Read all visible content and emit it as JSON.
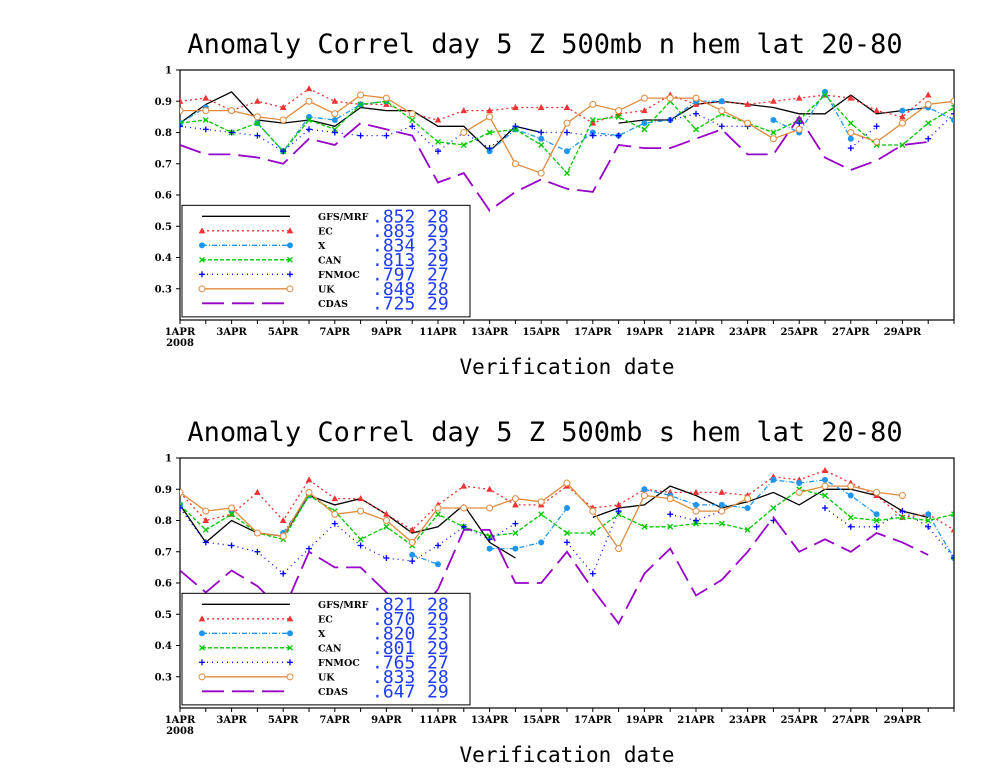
{
  "chart_data": [
    {
      "type": "line",
      "title": "Anomaly Correl  day 5  Z 500mb  n hem  lat 20-80",
      "xlabel": "Verification date",
      "ylim": [
        0.2,
        1.0
      ],
      "yticks": [
        "1",
        "0.9",
        "0.8",
        "0.7",
        "0.6",
        "0.5",
        "0.4",
        "0.3"
      ],
      "yticks_values": [
        1.0,
        0.9,
        0.8,
        0.7,
        0.6,
        0.5,
        0.4,
        0.3
      ],
      "xlim": [
        1,
        31
      ],
      "x_ticks": [
        "1APR",
        "3APR",
        "5APR",
        "7APR",
        "9APR",
        "11APR",
        "13APR",
        "15APR",
        "17APR",
        "19APR",
        "21APR",
        "23APR",
        "25APR",
        "27APR",
        "29APR"
      ],
      "x_ticks_days": [
        1,
        3,
        5,
        7,
        9,
        11,
        13,
        15,
        17,
        19,
        21,
        23,
        25,
        27,
        29
      ],
      "year_label": "2008",
      "series": [
        {
          "name": "GFS/MRF",
          "mean": ".852",
          "count": "28",
          "color": "#000000",
          "dash": "",
          "marker": "none",
          "values": [
            0.83,
            0.89,
            0.93,
            0.84,
            0.83,
            0.84,
            0.82,
            0.88,
            0.87,
            0.87,
            0.82,
            0.82,
            0.74,
            0.82,
            0.8,
            null,
            null,
            0.83,
            0.84,
            0.84,
            0.89,
            0.9,
            0.89,
            0.88,
            0.86,
            0.86,
            0.92,
            0.86,
            0.87,
            0.88,
            null
          ]
        },
        {
          "name": "EC",
          "mean": ".883",
          "count": "29",
          "color": "#f03232",
          "dash": "2,3",
          "marker": "triangle",
          "values": [
            0.9,
            0.91,
            0.87,
            0.9,
            0.88,
            0.94,
            0.9,
            0.89,
            0.89,
            0.86,
            0.84,
            0.87,
            0.87,
            0.88,
            0.88,
            0.88,
            0.83,
            0.86,
            0.87,
            0.92,
            0.89,
            0.9,
            0.89,
            0.9,
            0.91,
            0.92,
            0.91,
            0.87,
            0.85,
            0.92,
            null
          ]
        },
        {
          "name": "X",
          "mean": ".834",
          "count": "23",
          "color": "#1e96f0",
          "dash": "5,2,1,2",
          "marker": "circle",
          "values": [
            0.83,
            0.88,
            null,
            0.83,
            0.74,
            0.85,
            0.84,
            0.89,
            0.9,
            null,
            null,
            null,
            0.74,
            0.81,
            0.78,
            0.74,
            0.8,
            0.79,
            0.83,
            0.84,
            0.9,
            0.9,
            null,
            0.84,
            0.8,
            0.93,
            0.78,
            null,
            0.87,
            0.88,
            0.84
          ]
        },
        {
          "name": "CAN",
          "mean": ".813",
          "count": "29",
          "color": "#00c800",
          "dash": "4,2",
          "marker": "x",
          "values": [
            0.83,
            0.84,
            0.8,
            0.83,
            0.74,
            0.84,
            0.81,
            0.89,
            0.9,
            0.84,
            0.77,
            0.76,
            0.8,
            0.81,
            0.76,
            0.67,
            0.84,
            0.85,
            0.81,
            0.9,
            0.81,
            0.86,
            0.83,
            0.8,
            0.84,
            0.92,
            0.83,
            0.76,
            0.76,
            0.83,
            0.88
          ]
        },
        {
          "name": "FNMOC",
          "mean": ".797",
          "count": "27",
          "color": "#0000ff",
          "dash": "1,4",
          "marker": "plus",
          "values": [
            0.82,
            0.81,
            0.8,
            0.79,
            0.74,
            0.81,
            0.8,
            0.79,
            0.79,
            0.82,
            0.74,
            0.8,
            0.75,
            0.82,
            0.8,
            0.8,
            0.79,
            0.79,
            null,
            0.84,
            0.86,
            0.82,
            0.82,
            null,
            0.83,
            null,
            0.75,
            0.82,
            null,
            0.78,
            0.86
          ]
        },
        {
          "name": "UK",
          "mean": ".848",
          "count": "28",
          "color": "#e08a3c",
          "dash": "",
          "marker": "ocircle",
          "values": [
            0.87,
            0.87,
            0.87,
            0.85,
            0.84,
            0.9,
            0.86,
            0.92,
            0.91,
            0.86,
            null,
            0.8,
            0.85,
            0.7,
            0.67,
            0.83,
            0.89,
            0.87,
            0.91,
            0.91,
            0.91,
            0.87,
            0.83,
            0.78,
            0.81,
            null,
            0.8,
            0.77,
            0.83,
            0.89,
            0.9
          ]
        },
        {
          "name": "CDAS",
          "mean": ".725",
          "count": "29",
          "color": "#9600c8",
          "dash": "22,8",
          "marker": "none",
          "values": [
            0.76,
            0.73,
            0.73,
            0.72,
            0.7,
            0.78,
            0.76,
            0.83,
            0.81,
            0.79,
            0.64,
            0.67,
            0.55,
            0.61,
            0.65,
            0.62,
            0.61,
            0.76,
            0.75,
            0.75,
            0.78,
            0.81,
            0.73,
            0.73,
            0.85,
            0.72,
            0.68,
            0.71,
            0.76,
            0.77,
            null
          ]
        }
      ]
    },
    {
      "type": "line",
      "title": "Anomaly Correl  day 5  Z 500mb  s hem  lat 20-80",
      "xlabel": "Verification date",
      "ylim": [
        0.2,
        1.0
      ],
      "yticks": [
        "1",
        "0.9",
        "0.8",
        "0.7",
        "0.6",
        "0.5",
        "0.4",
        "0.3"
      ],
      "yticks_values": [
        1.0,
        0.9,
        0.8,
        0.7,
        0.6,
        0.5,
        0.4,
        0.3
      ],
      "xlim": [
        1,
        31
      ],
      "x_ticks": [
        "1APR",
        "3APR",
        "5APR",
        "7APR",
        "9APR",
        "11APR",
        "13APR",
        "15APR",
        "17APR",
        "19APR",
        "21APR",
        "23APR",
        "25APR",
        "27APR",
        "29APR"
      ],
      "x_ticks_days": [
        1,
        3,
        5,
        7,
        9,
        11,
        13,
        15,
        17,
        19,
        21,
        23,
        25,
        27,
        29
      ],
      "year_label": "2008",
      "series": [
        {
          "name": "GFS/MRF",
          "mean": ".821",
          "count": "28",
          "color": "#000000",
          "dash": "",
          "marker": "none",
          "values": [
            0.85,
            0.73,
            0.8,
            0.76,
            0.75,
            0.88,
            0.85,
            0.87,
            0.82,
            0.76,
            0.78,
            0.85,
            0.73,
            0.68,
            null,
            null,
            0.81,
            0.84,
            0.85,
            0.91,
            0.88,
            0.84,
            0.86,
            0.89,
            0.85,
            0.9,
            0.9,
            0.88,
            0.83,
            0.81,
            null
          ]
        },
        {
          "name": "EC",
          "mean": ".870",
          "count": "29",
          "color": "#f03232",
          "dash": "2,3",
          "marker": "triangle",
          "values": [
            0.89,
            0.8,
            0.82,
            0.89,
            0.8,
            0.93,
            0.87,
            0.87,
            0.82,
            0.77,
            0.85,
            0.91,
            0.9,
            0.85,
            0.85,
            0.91,
            0.84,
            0.85,
            0.9,
            0.89,
            0.89,
            0.89,
            0.88,
            0.94,
            0.93,
            0.96,
            0.92,
            0.88,
            0.81,
            0.82,
            0.77
          ]
        },
        {
          "name": "X",
          "mean": ".820",
          "count": "23",
          "color": "#1e96f0",
          "dash": "5,2,1,2",
          "marker": "circle",
          "values": [
            0.85,
            null,
            0.83,
            null,
            0.76,
            0.88,
            null,
            0.83,
            null,
            0.69,
            0.66,
            null,
            0.71,
            0.71,
            0.73,
            0.84,
            null,
            null,
            0.9,
            0.88,
            0.85,
            0.85,
            0.84,
            0.93,
            0.92,
            0.93,
            0.88,
            0.82,
            null,
            0.82,
            0.68
          ]
        },
        {
          "name": "CAN",
          "mean": ".801",
          "count": "29",
          "color": "#00c800",
          "dash": "4,2",
          "marker": "x",
          "values": [
            0.85,
            0.77,
            0.82,
            0.76,
            0.74,
            0.88,
            0.83,
            0.74,
            0.78,
            0.72,
            0.82,
            0.78,
            0.75,
            0.76,
            0.82,
            0.76,
            0.76,
            0.82,
            0.78,
            0.78,
            0.79,
            0.79,
            0.77,
            0.84,
            0.9,
            0.88,
            0.81,
            0.8,
            0.81,
            0.8,
            0.82
          ]
        },
        {
          "name": "FNMOC",
          "mean": ".765",
          "count": "27",
          "color": "#0000ff",
          "dash": "1,4",
          "marker": "plus",
          "values": [
            0.84,
            0.73,
            0.72,
            0.7,
            0.63,
            0.71,
            0.79,
            0.72,
            0.68,
            0.67,
            0.72,
            0.78,
            0.74,
            0.79,
            null,
            0.73,
            0.63,
            0.83,
            null,
            0.82,
            0.8,
            0.83,
            null,
            0.8,
            null,
            0.84,
            0.78,
            0.78,
            0.83,
            0.78,
            0.68
          ]
        },
        {
          "name": "UK",
          "mean": ".833",
          "count": "28",
          "color": "#e08a3c",
          "dash": "",
          "marker": "ocircle",
          "values": [
            0.89,
            0.83,
            0.84,
            0.76,
            0.75,
            0.89,
            0.82,
            0.83,
            0.8,
            0.73,
            0.84,
            0.84,
            0.84,
            0.87,
            0.86,
            0.92,
            0.83,
            0.71,
            0.88,
            0.87,
            0.83,
            0.83,
            0.87,
            null,
            0.89,
            0.91,
            0.91,
            0.89,
            0.88,
            null,
            null
          ]
        },
        {
          "name": "CDAS",
          "mean": ".647",
          "count": "29",
          "color": "#9600c8",
          "dash": "22,8",
          "marker": "none",
          "values": [
            0.64,
            0.57,
            0.64,
            0.59,
            0.51,
            0.7,
            0.65,
            0.65,
            0.57,
            0.48,
            0.58,
            0.77,
            0.77,
            0.6,
            0.6,
            0.7,
            0.58,
            0.47,
            0.63,
            0.71,
            0.56,
            0.61,
            0.7,
            0.81,
            0.7,
            0.74,
            0.7,
            0.76,
            0.73,
            0.69,
            null
          ]
        }
      ]
    }
  ]
}
